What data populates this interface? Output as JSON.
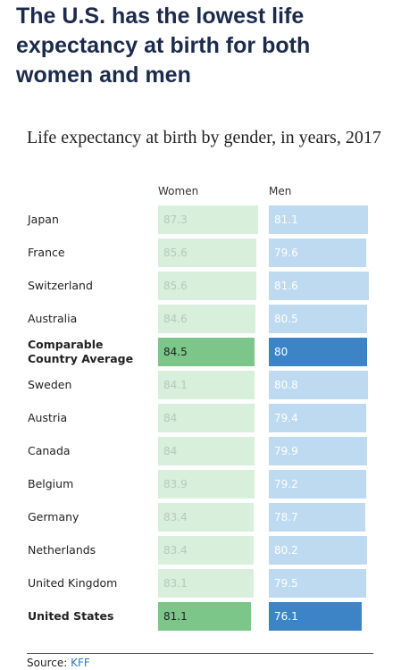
{
  "chart_data": {
    "type": "bar",
    "title": "The U.S. has the lowest life expectancy at birth for both women and men",
    "subtitle": "Life expectancy at birth by gender, in years, 2017",
    "categories": [
      "Japan",
      "France",
      "Switzerland",
      "Australia",
      "Comparable Country Average",
      "Sweden",
      "Austria",
      "Canada",
      "Belgium",
      "Germany",
      "Netherlands",
      "United Kingdom",
      "United States"
    ],
    "highlight": [
      4,
      12
    ],
    "series": [
      {
        "name": "Women",
        "color": "#d8efdb",
        "highlight_color": "#7dc68a",
        "values": [
          87.3,
          85.6,
          85.6,
          84.6,
          84.5,
          84.1,
          84,
          84,
          83.9,
          83.4,
          83.4,
          83.1,
          81.1
        ]
      },
      {
        "name": "Men",
        "color": "#bddaf0",
        "highlight_color": "#3d84c6",
        "values": [
          81.1,
          79.6,
          81.6,
          80.5,
          80,
          80.8,
          79.4,
          79.9,
          79.2,
          78.7,
          80.2,
          79.5,
          76.1
        ]
      }
    ],
    "source_label": "Source:",
    "source": "KFF"
  }
}
